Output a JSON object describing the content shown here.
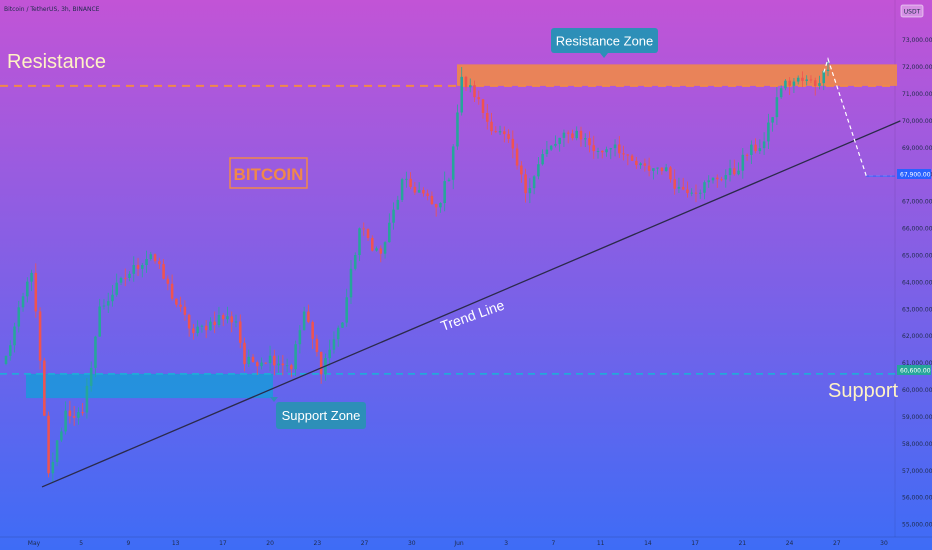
{
  "header": {
    "symbol_text": "Bitcoin / TetherUS, 3h, BINANCE",
    "currency_button": "USDT"
  },
  "chart_data": {
    "type": "candlestick",
    "symbol": "Bitcoin / TetherUS, 3h, BINANCE",
    "ylim": [
      54800,
      73600
    ],
    "y_ticks": [
      55000,
      56000,
      57000,
      58000,
      59000,
      60000,
      61000,
      62000,
      63000,
      64000,
      65000,
      66000,
      67000,
      68000,
      69000,
      70000,
      71000,
      72000,
      73000
    ],
    "y_tick_labels": [
      "55,000.00",
      "56,000.00",
      "57,000.00",
      "58,000.00",
      "59,000.00",
      "60,000.00",
      "61,000.00",
      "62,000.00",
      "63,000.00",
      "64,000.00",
      "65,000.00",
      "66,000.00",
      "67,000.00",
      "68,000.00",
      "69,000.00",
      "70,000.00",
      "71,000.00",
      "72,000.00",
      "73,000.00"
    ],
    "x_tick_labels": [
      "May",
      "5",
      "9",
      "13",
      "17",
      "20",
      "23",
      "27",
      "30",
      "Jun",
      "3",
      "7",
      "11",
      "14",
      "17",
      "21",
      "24",
      "27",
      "30"
    ],
    "price_badges": [
      {
        "value": 67900,
        "label": "67,900.00",
        "color": "#2962ff"
      },
      {
        "value": 60600,
        "label": "60,600.00",
        "color": "#26a69a"
      }
    ],
    "resistance_level": 71300,
    "support_level": 60600,
    "resistance_zone": [
      71300,
      72100
    ],
    "support_zone": [
      59700,
      60600
    ],
    "trend_line": {
      "start": [
        0,
        56400
      ],
      "end": [
        210,
        70000
      ]
    },
    "projection": [
      [
        192,
        71800
      ],
      [
        193,
        72300
      ],
      [
        202,
        67950
      ],
      [
        208,
        67950
      ]
    ],
    "anchors": [
      [
        0,
        61200
      ],
      [
        6,
        64500
      ],
      [
        8,
        61000
      ],
      [
        10,
        56800
      ],
      [
        14,
        59200
      ],
      [
        18,
        59000
      ],
      [
        22,
        63000
      ],
      [
        28,
        64200
      ],
      [
        34,
        65100
      ],
      [
        40,
        63200
      ],
      [
        44,
        62100
      ],
      [
        50,
        62700
      ],
      [
        54,
        62600
      ],
      [
        56,
        61000
      ],
      [
        62,
        61200
      ],
      [
        67,
        60900
      ],
      [
        70,
        62900
      ],
      [
        74,
        60800
      ],
      [
        79,
        62600
      ],
      [
        83,
        66000
      ],
      [
        88,
        65000
      ],
      [
        93,
        67700
      ],
      [
        97,
        67400
      ],
      [
        101,
        66700
      ],
      [
        104,
        68000
      ],
      [
        107,
        71500
      ],
      [
        110,
        71000
      ],
      [
        113,
        70000
      ],
      [
        118,
        69200
      ],
      [
        122,
        67400
      ],
      [
        126,
        68700
      ],
      [
        130,
        69300
      ],
      [
        134,
        69600
      ],
      [
        139,
        68800
      ],
      [
        143,
        69200
      ],
      [
        146,
        68500
      ],
      [
        150,
        68200
      ],
      [
        154,
        68300
      ],
      [
        158,
        67500
      ],
      [
        163,
        67500
      ],
      [
        167,
        67900
      ],
      [
        171,
        68100
      ],
      [
        174,
        68800
      ],
      [
        178,
        69200
      ],
      [
        182,
        71300
      ],
      [
        186,
        71500
      ],
      [
        190,
        71400
      ],
      [
        193,
        71900
      ]
    ],
    "annotations": [
      {
        "text": "Resistance",
        "kind": "label"
      },
      {
        "text": "Support",
        "kind": "label"
      },
      {
        "text": "Resistance Zone",
        "kind": "callout"
      },
      {
        "text": "Support Zone",
        "kind": "callout"
      },
      {
        "text": "BITCOIN",
        "kind": "title-box"
      },
      {
        "text": "Trend Line",
        "kind": "line-label"
      }
    ],
    "colors": {
      "bg_top": "#c254d6",
      "bg_bottom": "#3e6cf6",
      "up": "#26a69a",
      "down": "#ef5350",
      "resistance_zone": "#f0884a",
      "support_zone": "#1e96dc",
      "trend_line": "#2b2a4a",
      "callout": "#2d8fb8"
    }
  }
}
